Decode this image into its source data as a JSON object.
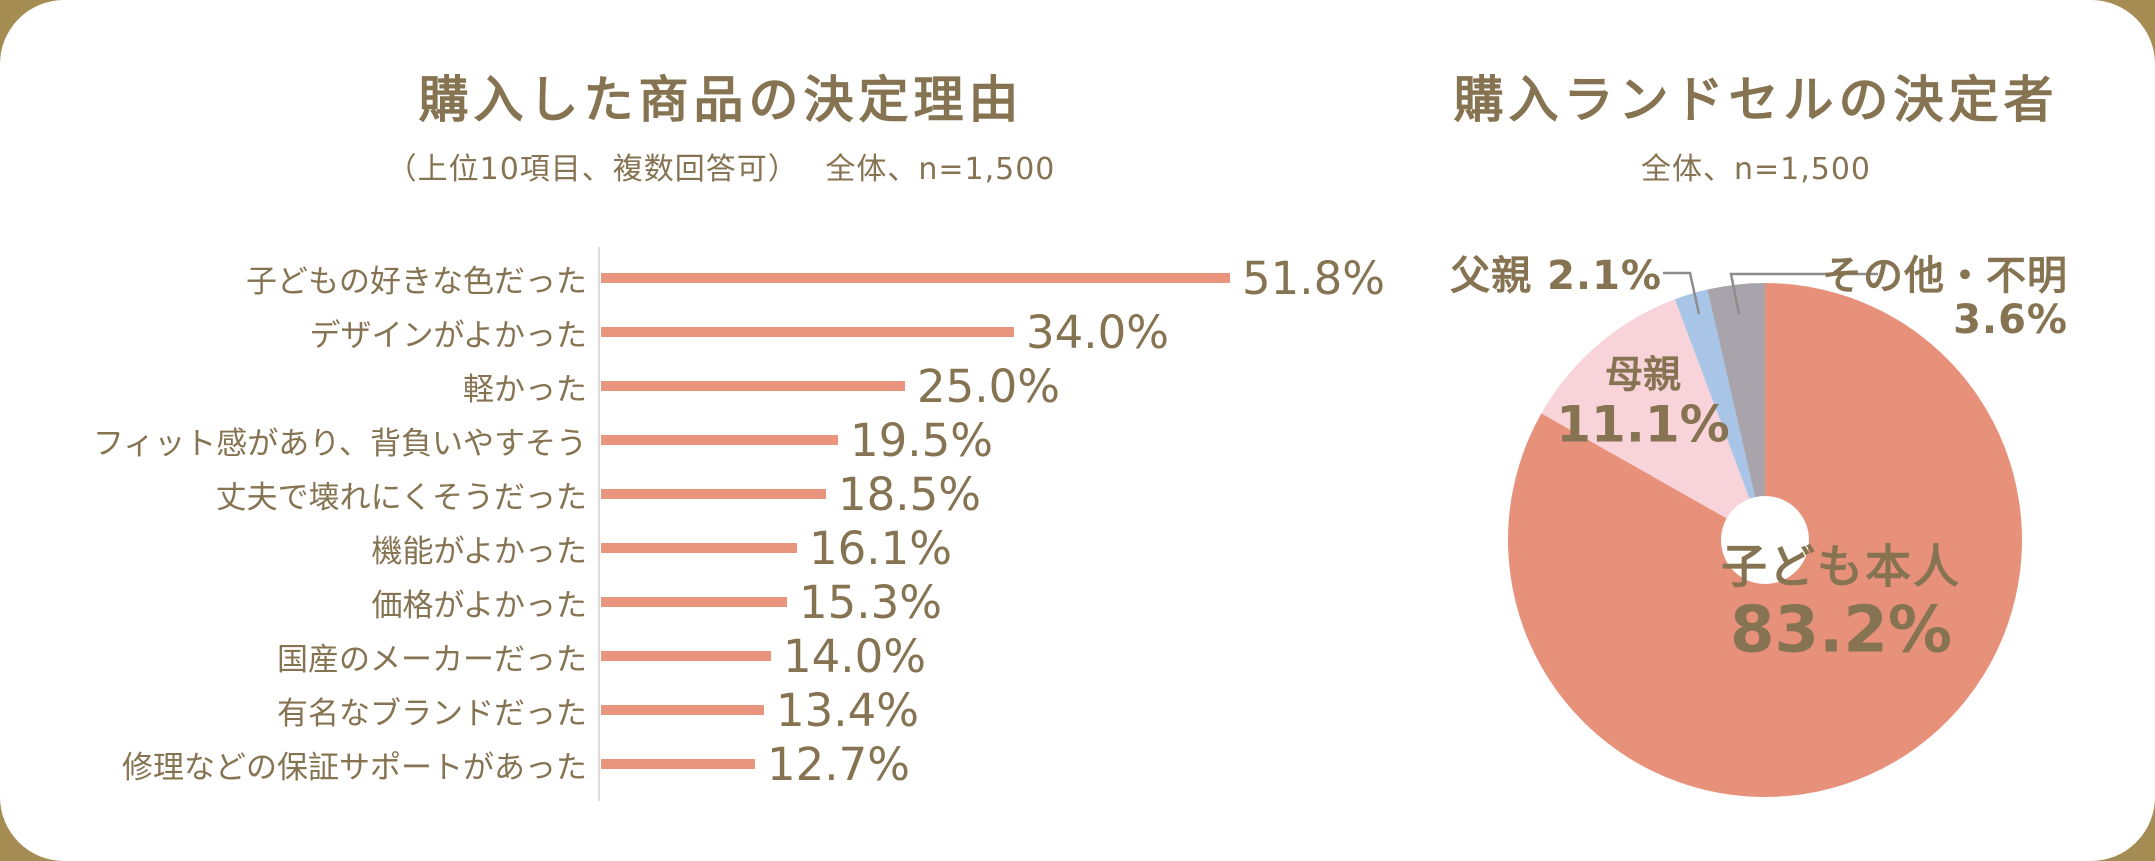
{
  "page": {
    "background_color": "#A48C53",
    "card_color": "#FFFFFF",
    "text_color": "#857351"
  },
  "chart_data": [
    {
      "type": "bar",
      "orientation": "horizontal",
      "title": "購入した商品の決定理由",
      "subtitle": "（上位10項目、複数回答可）　 全体、n=1,500",
      "categories": [
        "子どもの好きな色だった",
        "デザインがよかった",
        "軽かった",
        "フィット感があり、背負いやすそう",
        "丈夫で壊れにくそうだった",
        "機能がよかった",
        "価格がよかった",
        "国産のメーカーだった",
        "有名なブランドだった",
        "修理などの保証サポートがあった"
      ],
      "values": [
        51.8,
        34.0,
        25.0,
        19.5,
        18.5,
        16.1,
        15.3,
        14.0,
        13.4,
        12.7
      ],
      "value_labels": [
        "51.8%",
        "34.0%",
        "25.0%",
        "19.5%",
        "18.5%",
        "16.1%",
        "15.3%",
        "14.0%",
        "13.4%",
        "12.7%"
      ],
      "xlabel": "",
      "ylabel": "",
      "xlim": [
        0,
        55
      ],
      "grid": false,
      "legend": false,
      "bar_color": "#E9947C",
      "axis_color": "#DBDBDB"
    },
    {
      "type": "pie",
      "title": "購入ランドセルの決定者",
      "subtitle": "全体、n=1,500",
      "start_angle_deg": 0,
      "direction": "clockwise",
      "donut_hole": true,
      "slices": [
        {
          "label": "子ども本人",
          "value": 83.2,
          "display": "83.2%",
          "color": "#E8917A",
          "label_position": "inside"
        },
        {
          "label": "母親",
          "value": 11.1,
          "display": "11.1%",
          "color": "#F8D3DA",
          "label_position": "inside"
        },
        {
          "label": "父親",
          "value": 2.1,
          "display": "2.1%",
          "color": "#A8C4E6",
          "label_position": "outside"
        },
        {
          "label": "その他・不明",
          "value": 3.6,
          "display": "3.6%",
          "color": "#A9A4AB",
          "label_position": "outside"
        }
      ],
      "leader_line_color": "#8C8C8C"
    }
  ]
}
